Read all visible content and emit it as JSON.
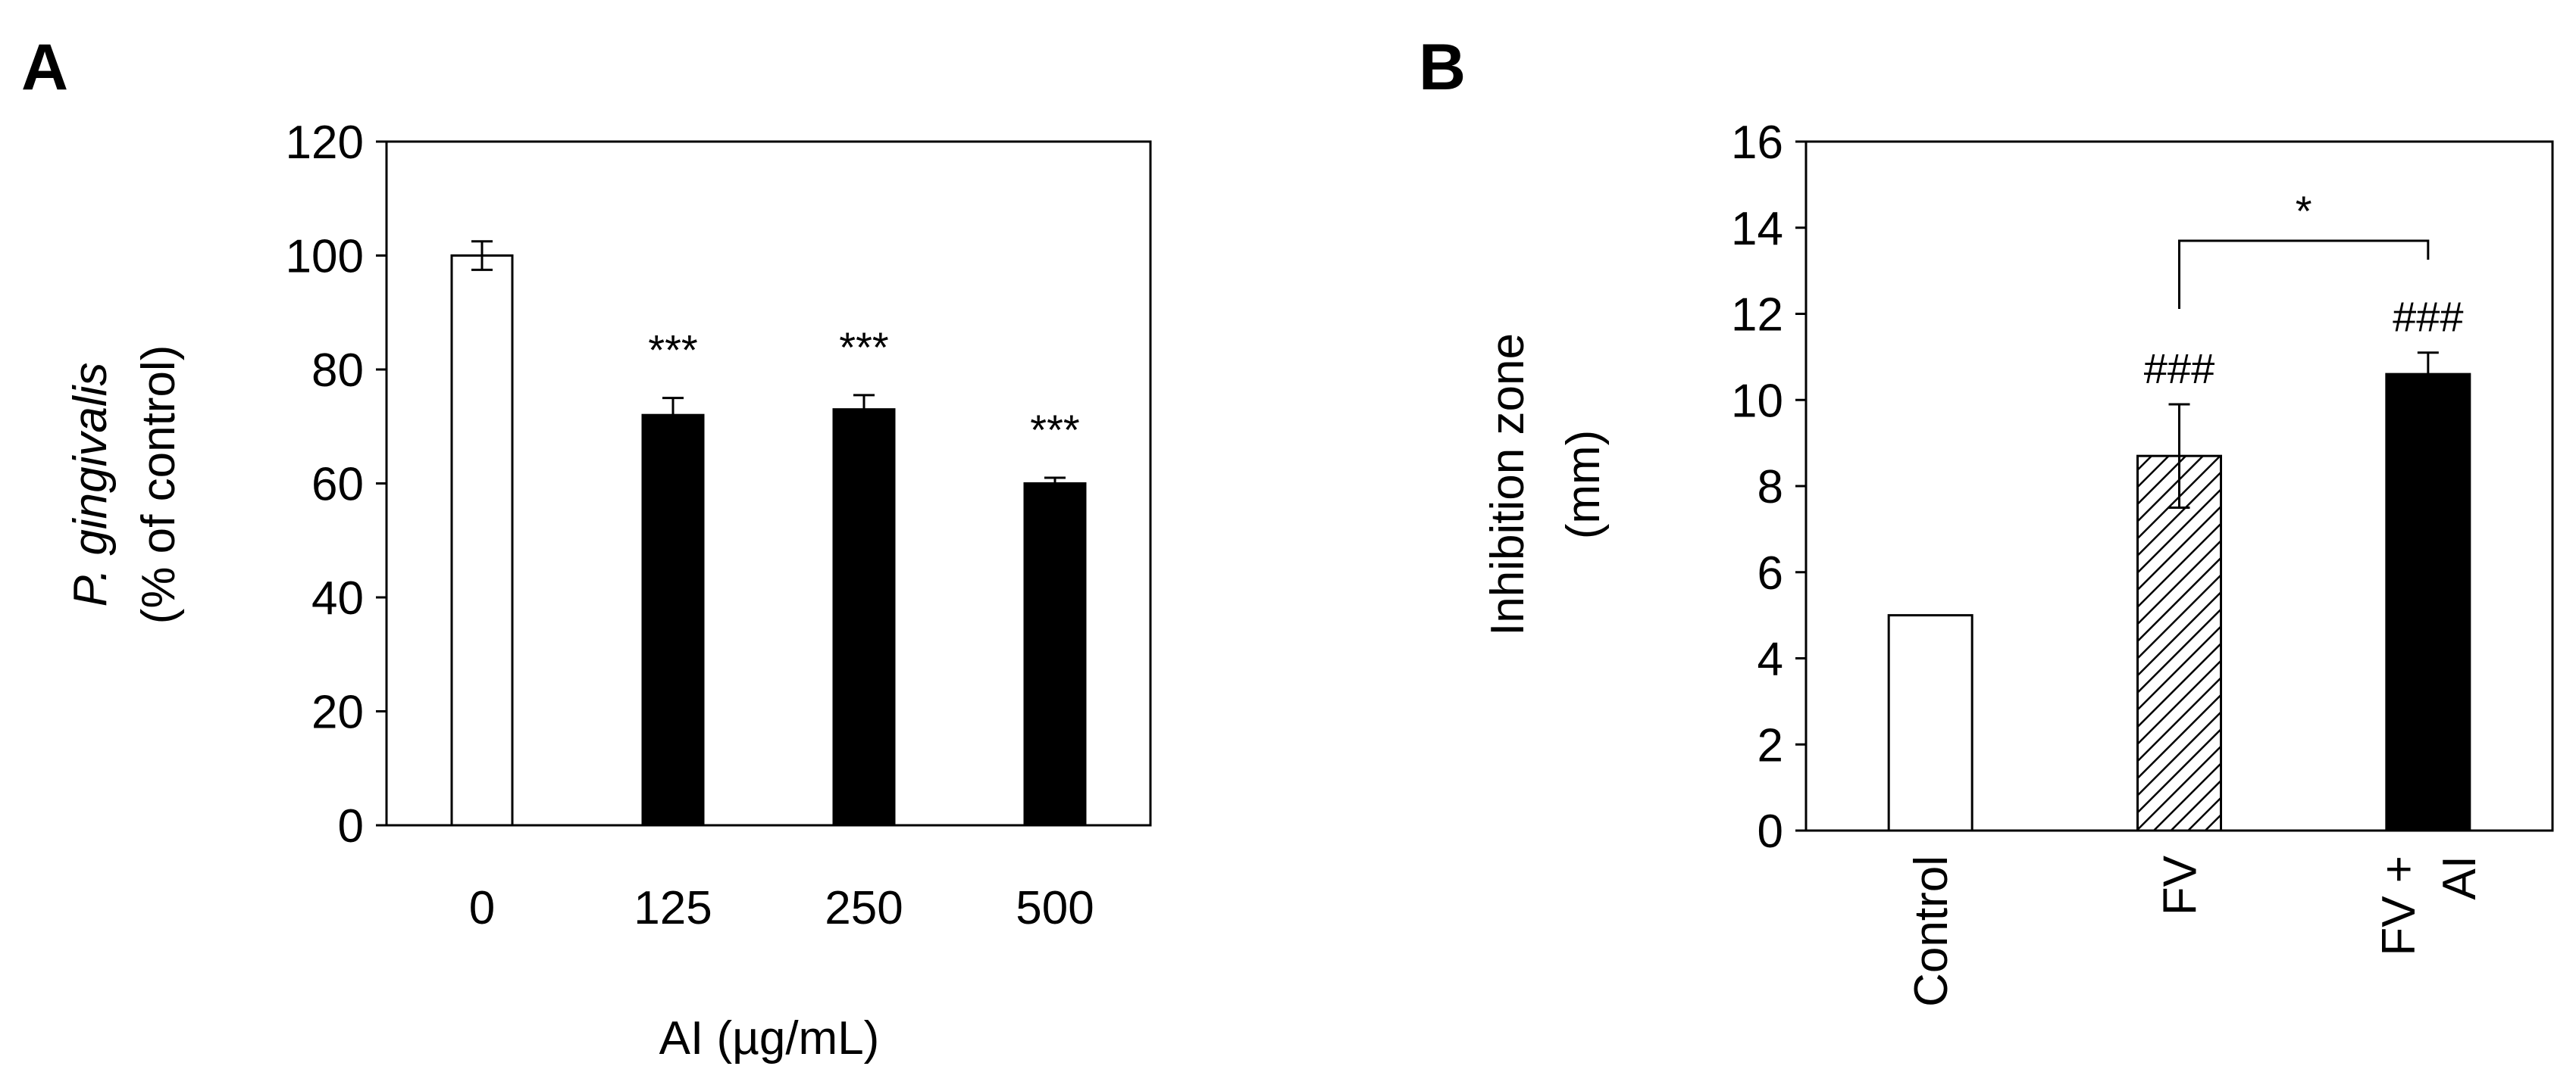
{
  "chart_data": [
    {
      "panel_label": "A",
      "type": "bar",
      "categories": [
        "0",
        "125",
        "250",
        "500"
      ],
      "values": [
        100,
        72,
        73,
        60
      ],
      "errors": [
        2.5,
        3,
        2.5,
        1
      ],
      "bar_fills": [
        "white",
        "black",
        "black",
        "black"
      ],
      "significance": [
        "",
        "***",
        "***",
        "***"
      ],
      "ylabel_line1": "P. gingivalis",
      "ylabel_line2": "(% of control)",
      "xlabel": "AI (µg/mL)",
      "yticks": [
        0,
        20,
        40,
        60,
        80,
        100,
        120
      ],
      "ylim": [
        0,
        120
      ],
      "grid": false
    },
    {
      "panel_label": "B",
      "type": "bar",
      "categories": [
        "Control",
        "FV",
        "FV + AI"
      ],
      "values": [
        5,
        8.7,
        10.6
      ],
      "errors": [
        0,
        1.2,
        0.5
      ],
      "bar_fills": [
        "white",
        "hatched",
        "black"
      ],
      "significance": [
        "",
        "###",
        "###"
      ],
      "bracket": {
        "from": "FV",
        "to": "FV + AI",
        "label": "*"
      },
      "ylabel_line1": "Inhibition zone",
      "ylabel_line2": "(mm)",
      "yticks": [
        0,
        2,
        4,
        6,
        8,
        10,
        12,
        14,
        16
      ],
      "ylim": [
        0,
        16
      ],
      "grid": false
    }
  ]
}
